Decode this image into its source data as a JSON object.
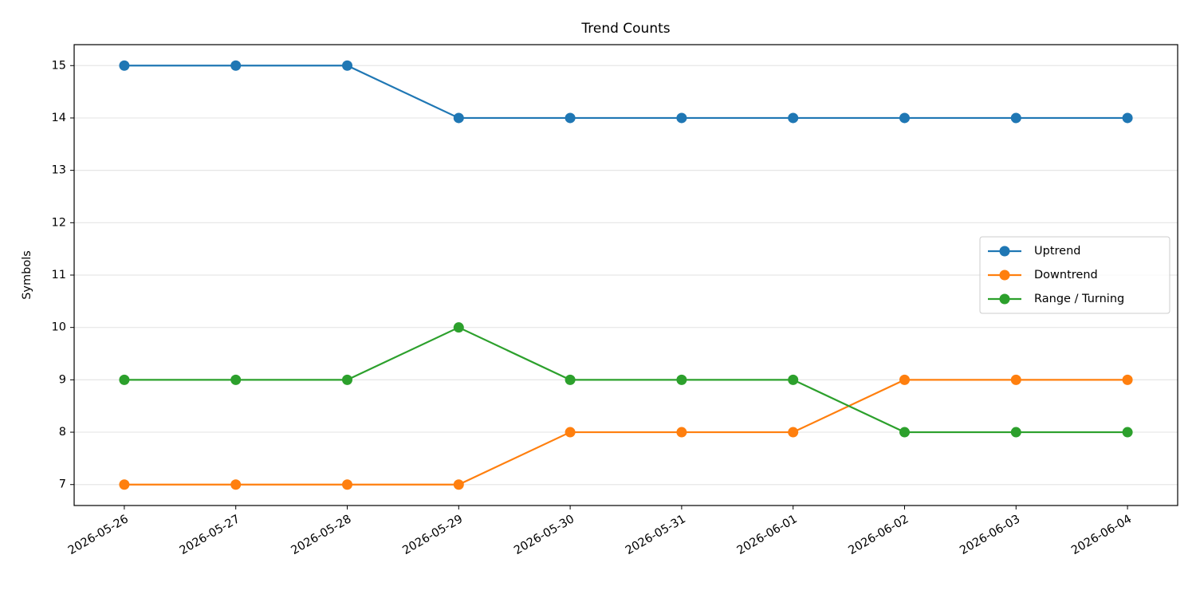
{
  "chart_data": {
    "type": "line",
    "title": "Trend Counts",
    "y_label": "Symbols",
    "x": [
      "2026-05-26",
      "2026-05-27",
      "2026-05-28",
      "2026-05-29",
      "2026-05-30",
      "2026-05-31",
      "2026-06-01",
      "2026-06-02",
      "2026-06-03",
      "2026-06-04"
    ],
    "series": [
      {
        "name": "Uptrend",
        "color": "#1f77b4",
        "values": [
          15,
          15,
          15,
          14,
          14,
          14,
          14,
          14,
          14,
          14
        ]
      },
      {
        "name": "Downtrend",
        "color": "#ff7f0e",
        "values": [
          7,
          7,
          7,
          7,
          8,
          8,
          8,
          9,
          9,
          9
        ]
      },
      {
        "name": "Range / Turning",
        "color": "#2ca02c",
        "values": [
          9,
          9,
          9,
          10,
          9,
          9,
          9,
          8,
          8,
          8
        ]
      }
    ],
    "ylim": [
      6.6,
      15.4
    ],
    "yticks": [
      7,
      8,
      9,
      10,
      11,
      12,
      13,
      14,
      15
    ],
    "grid": true,
    "legend": "center right"
  }
}
